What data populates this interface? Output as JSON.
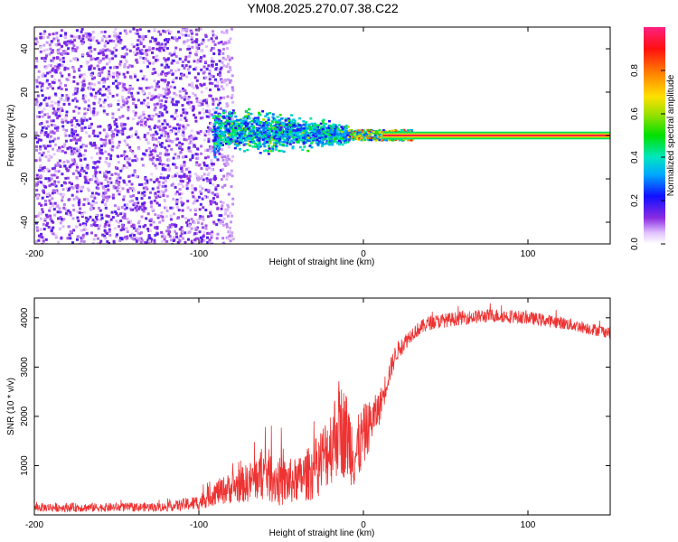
{
  "title": "YM08.2025.270.07.38.C22",
  "chart_data": [
    {
      "type": "heatmap",
      "xlabel": "Height of straight line (km)",
      "ylabel": "Frequency (Hz)",
      "xlim": [
        -200,
        150
      ],
      "ylim": [
        -50,
        50
      ],
      "xticks": [
        "-200",
        "-100",
        "0",
        "100"
      ],
      "yticks": [
        "-40",
        "-20",
        "0",
        "20",
        "40"
      ],
      "regions": [
        {
          "name": "diffuse-noise",
          "x_range": [
            -200,
            -87
          ],
          "freq_range": [
            -50,
            50
          ],
          "amplitude": 0.15
        },
        {
          "name": "sparse-noise",
          "x_range": [
            -87,
            -80
          ],
          "freq_range": [
            -50,
            50
          ],
          "amplitude": 0.05
        },
        {
          "name": "broadened-signal",
          "x_range": [
            -92,
            -10
          ],
          "freq_range": [
            -8,
            12
          ],
          "amplitude": 0.3
        },
        {
          "name": "converging-signal",
          "x_range": [
            -10,
            30
          ],
          "freq_range": [
            -2,
            3
          ],
          "amplitude": 0.7
        },
        {
          "name": "narrow-line",
          "x_range": [
            20,
            150
          ],
          "freq_range": [
            -1,
            1
          ],
          "amplitude": 0.95
        }
      ],
      "colorbar": {
        "label": "Normalized spectral amplitude",
        "ticks": [
          "0.0",
          "0.2",
          "0.4",
          "0.6",
          "0.8"
        ],
        "range": [
          0,
          1
        ]
      }
    },
    {
      "type": "line",
      "xlabel": "Height of straight line (km)",
      "ylabel": "SNR (10 * v/v)",
      "xlim": [
        -200,
        150
      ],
      "ylim": [
        0,
        4400
      ],
      "xticks": [
        "-200",
        "-100",
        "0",
        "100"
      ],
      "yticks": [
        "1000",
        "2000",
        "3000",
        "4000"
      ],
      "series": [
        {
          "name": "SNR",
          "color": "#ee3333",
          "x": [
            -200,
            -160,
            -120,
            -100,
            -90,
            -80,
            -70,
            -60,
            -50,
            -40,
            -30,
            -20,
            -15,
            -10,
            -5,
            0,
            5,
            10,
            15,
            20,
            30,
            40,
            60,
            80,
            100,
            120,
            150
          ],
          "mean": [
            150,
            150,
            160,
            250,
            450,
            550,
            650,
            850,
            650,
            700,
            900,
            1400,
            1800,
            1600,
            1200,
            1600,
            1900,
            2200,
            2800,
            3300,
            3700,
            3900,
            4000,
            4050,
            4000,
            3900,
            3700
          ],
          "noise": [
            90,
            90,
            90,
            160,
            250,
            320,
            400,
            550,
            500,
            450,
            600,
            800,
            1000,
            900,
            700,
            650,
            450,
            350,
            250,
            200,
            150,
            150,
            140,
            140,
            130,
            130,
            120
          ]
        }
      ]
    }
  ]
}
